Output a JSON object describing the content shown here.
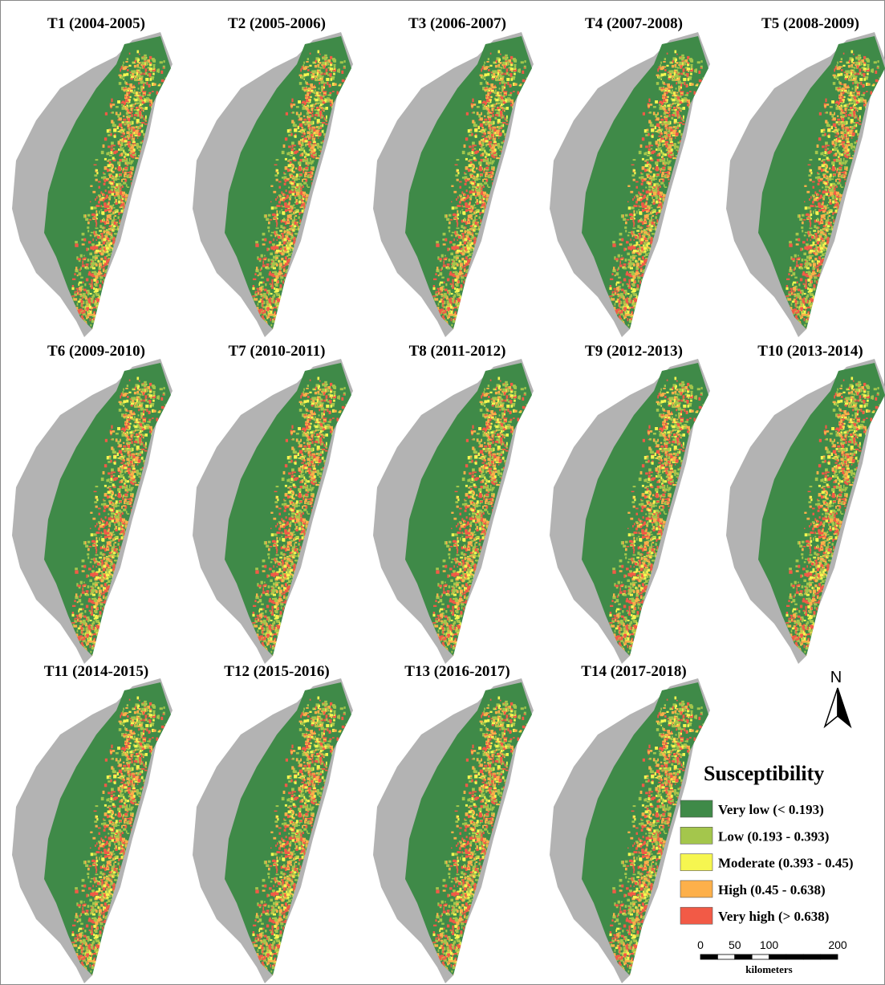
{
  "panels": [
    {
      "title": "T1 (2004-2005)"
    },
    {
      "title": "T2 (2005-2006)"
    },
    {
      "title": "T3 (2006-2007)"
    },
    {
      "title": "T4 (2007-2008)"
    },
    {
      "title": "T5 (2008-2009)"
    },
    {
      "title": "T6 (2009-2010)"
    },
    {
      "title": "T7 (2010-2011)"
    },
    {
      "title": "T8 (2011-2012)"
    },
    {
      "title": "T9 (2012-2013)"
    },
    {
      "title": "T10 (2013-2014)"
    },
    {
      "title": "T11 (2014-2015)"
    },
    {
      "title": "T12 (2015-2016)"
    },
    {
      "title": "T13 (2016-2017)"
    },
    {
      "title": "T14 (2017-2018)"
    }
  ],
  "legend": {
    "title": "Susceptibility",
    "items": [
      {
        "label": "Very low (< 0.193)",
        "color": "#3f8a48"
      },
      {
        "label": "Low (0.193 - 0.393)",
        "color": "#a4c64c"
      },
      {
        "label": "Moderate (0.393 - 0.45)",
        "color": "#f6f650"
      },
      {
        "label": "High (0.45 - 0.638)",
        "color": "#fdb04a"
      },
      {
        "label": "Very high (> 0.638)",
        "color": "#f25a46"
      }
    ]
  },
  "scale_bar": {
    "ticks": [
      0,
      50,
      100,
      200
    ],
    "unit": "kilometers"
  },
  "north_arrow": "N"
}
